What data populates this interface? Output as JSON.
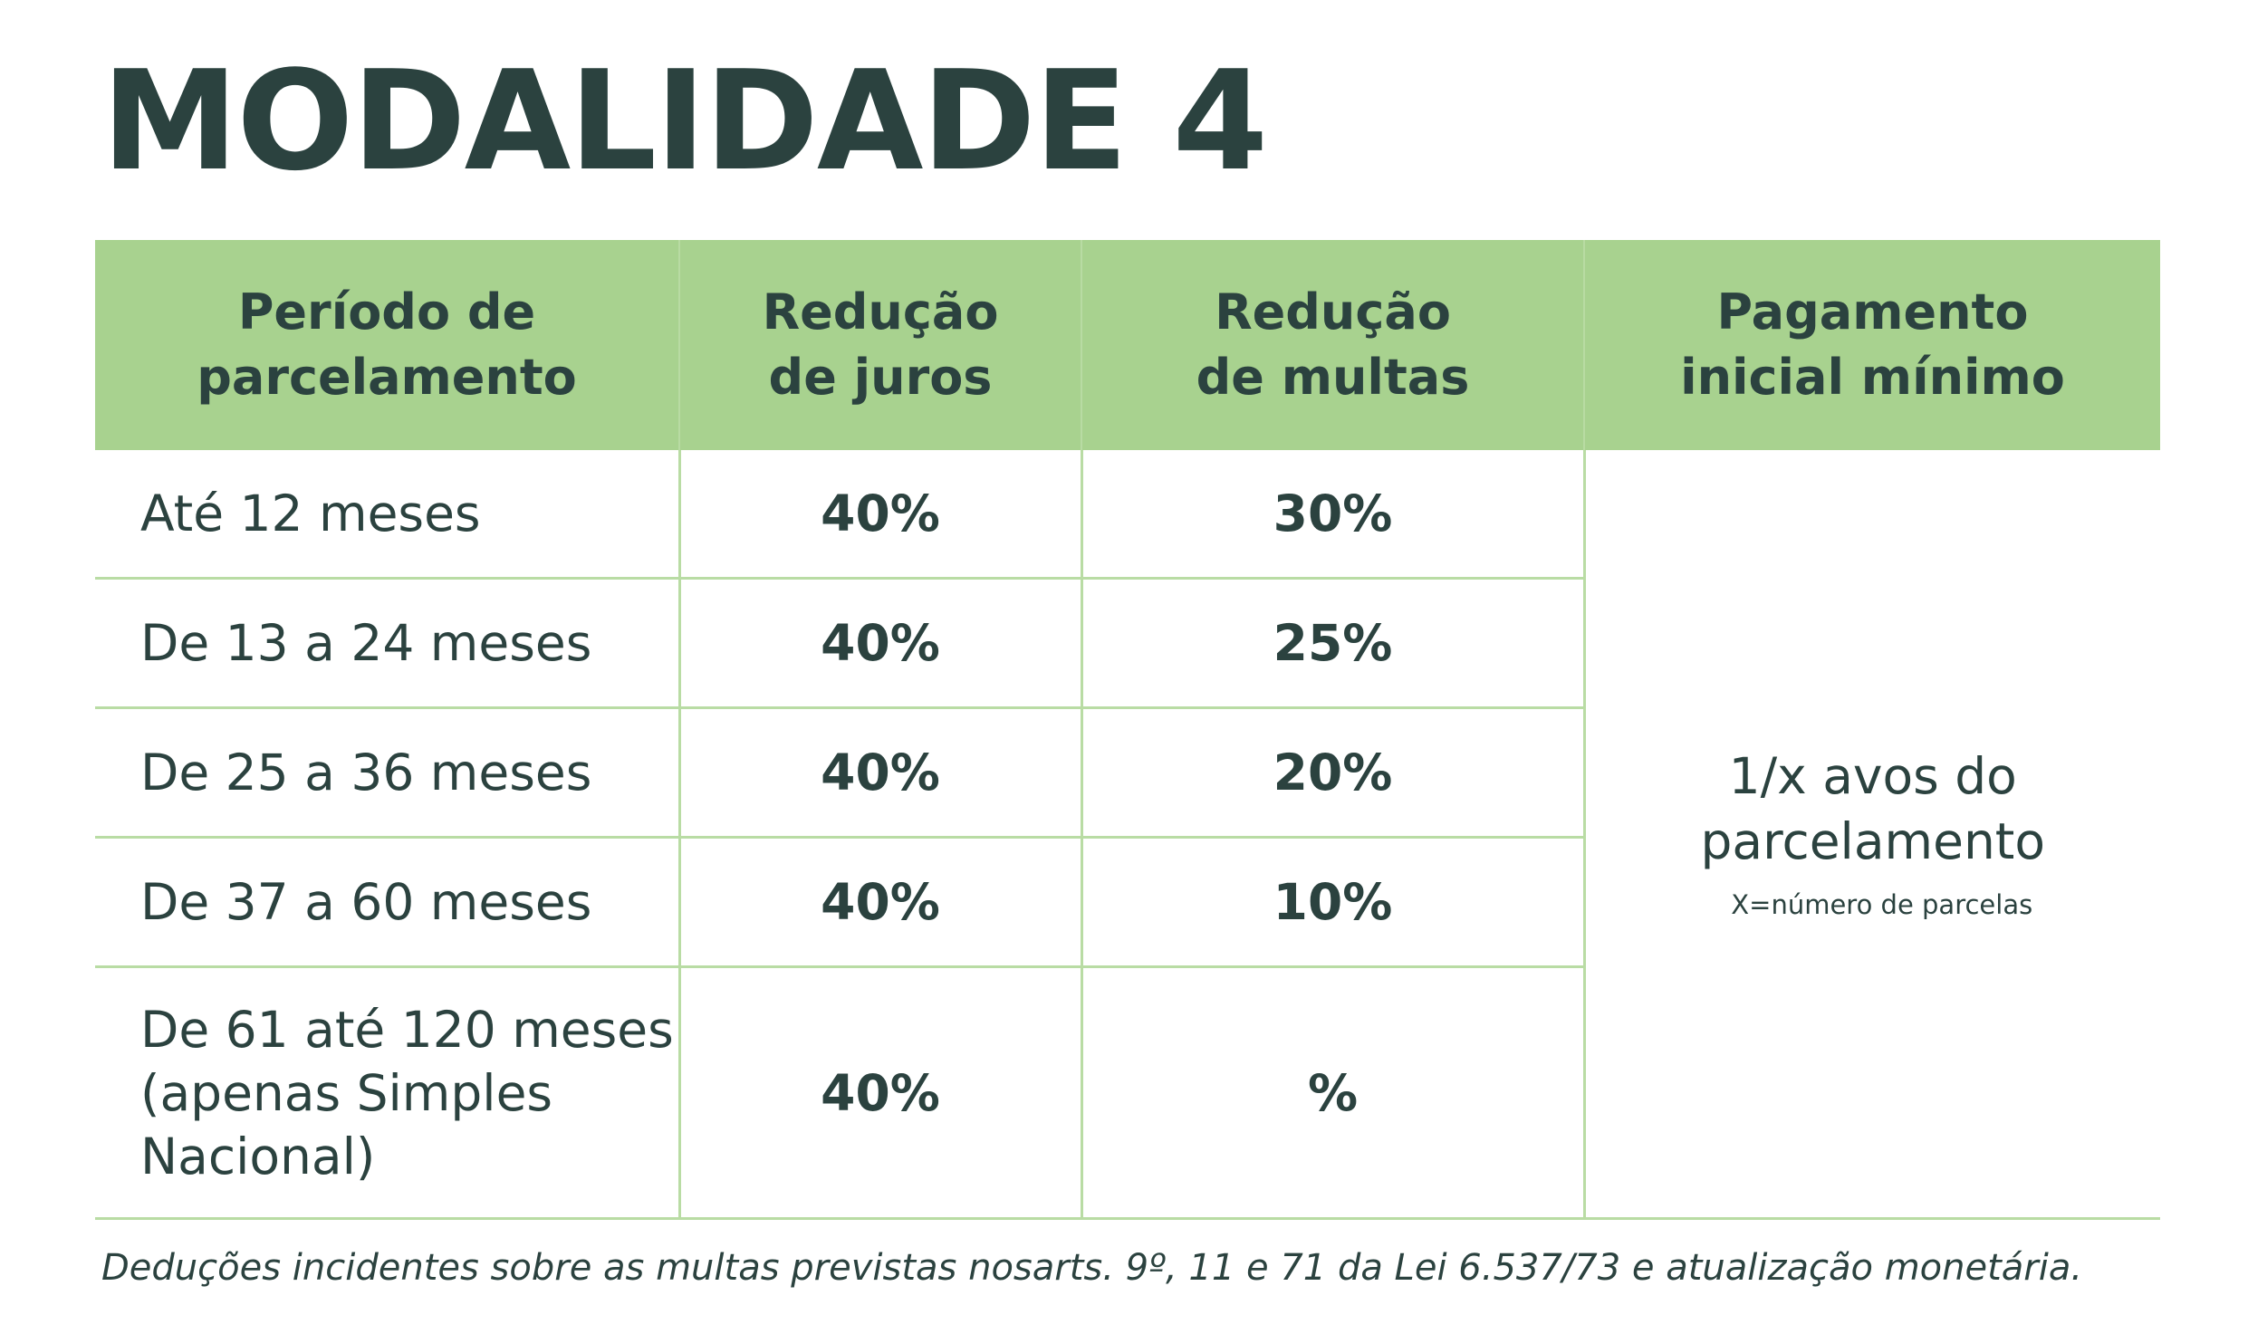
{
  "title": "MODALIDADE 4",
  "table": {
    "headers": [
      {
        "line1": "Período de",
        "line2": "parcelamento"
      },
      {
        "line1": "Redução",
        "line2": "de juros"
      },
      {
        "line1": "Redução",
        "line2": "de multas"
      },
      {
        "line1": "Pagamento",
        "line2": "inicial mínimo"
      }
    ],
    "rows": [
      {
        "period": [
          "Até 12 meses"
        ],
        "juros": "40%",
        "multas": "30%"
      },
      {
        "period": [
          "De 13 a 24 meses"
        ],
        "juros": "40%",
        "multas": "25%"
      },
      {
        "period": [
          "De 25 a 36 meses"
        ],
        "juros": "40%",
        "multas": "20%"
      },
      {
        "period": [
          "De 37 a 60 meses"
        ],
        "juros": "40%",
        "multas": "10%"
      },
      {
        "period": [
          "De 61 até 120 meses",
          "(apenas Simples",
          "Nacional)"
        ],
        "juros": "40%",
        "multas": "%"
      }
    ],
    "payment": {
      "line1": "1/x avos do",
      "line2": "parcelamento",
      "note": "X=número de parcelas"
    }
  },
  "footnote": "Deduções incidentes sobre as multas previstas nosarts. 9º, 11 e 71 da Lei 6.537/73 e atualização monetária."
}
